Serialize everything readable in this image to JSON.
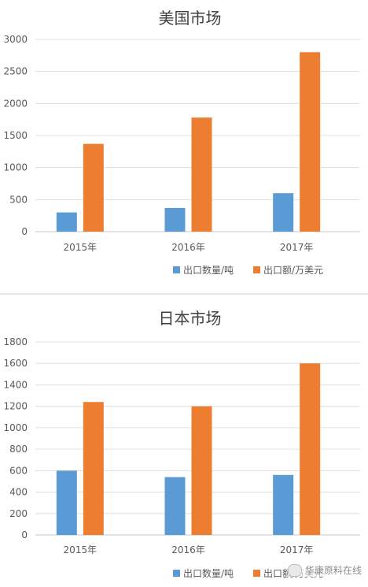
{
  "chart_data": [
    {
      "type": "bar",
      "title": "美国市场",
      "categories": [
        "2015年",
        "2016年",
        "2017年"
      ],
      "series": [
        {
          "name": "出口数量/吨",
          "values": [
            300,
            370,
            600
          ],
          "color": "#5b9bd5"
        },
        {
          "name": "出口额/万美元",
          "values": [
            1370,
            1780,
            2800
          ],
          "color": "#ed7d31"
        }
      ],
      "ylim": [
        0,
        3000
      ],
      "yticks": [
        0,
        500,
        1000,
        1500,
        2000,
        2500,
        3000
      ],
      "grid": true,
      "legend": "bottom"
    },
    {
      "type": "bar",
      "title": "日本市场",
      "categories": [
        "2015年",
        "2016年",
        "2017年"
      ],
      "series": [
        {
          "name": "出口数量/吨",
          "values": [
            600,
            540,
            560
          ],
          "color": "#5b9bd5"
        },
        {
          "name": "出口额/万美元",
          "values": [
            1240,
            1200,
            1600
          ],
          "color": "#ed7d31"
        }
      ],
      "ylim": [
        0,
        1800
      ],
      "yticks": [
        0,
        200,
        400,
        600,
        800,
        1000,
        1200,
        1400,
        1600,
        1800
      ],
      "grid": true,
      "legend": "bottom"
    }
  ],
  "watermark": {
    "icon": "wechat-icon",
    "text": "华康原料在线"
  }
}
